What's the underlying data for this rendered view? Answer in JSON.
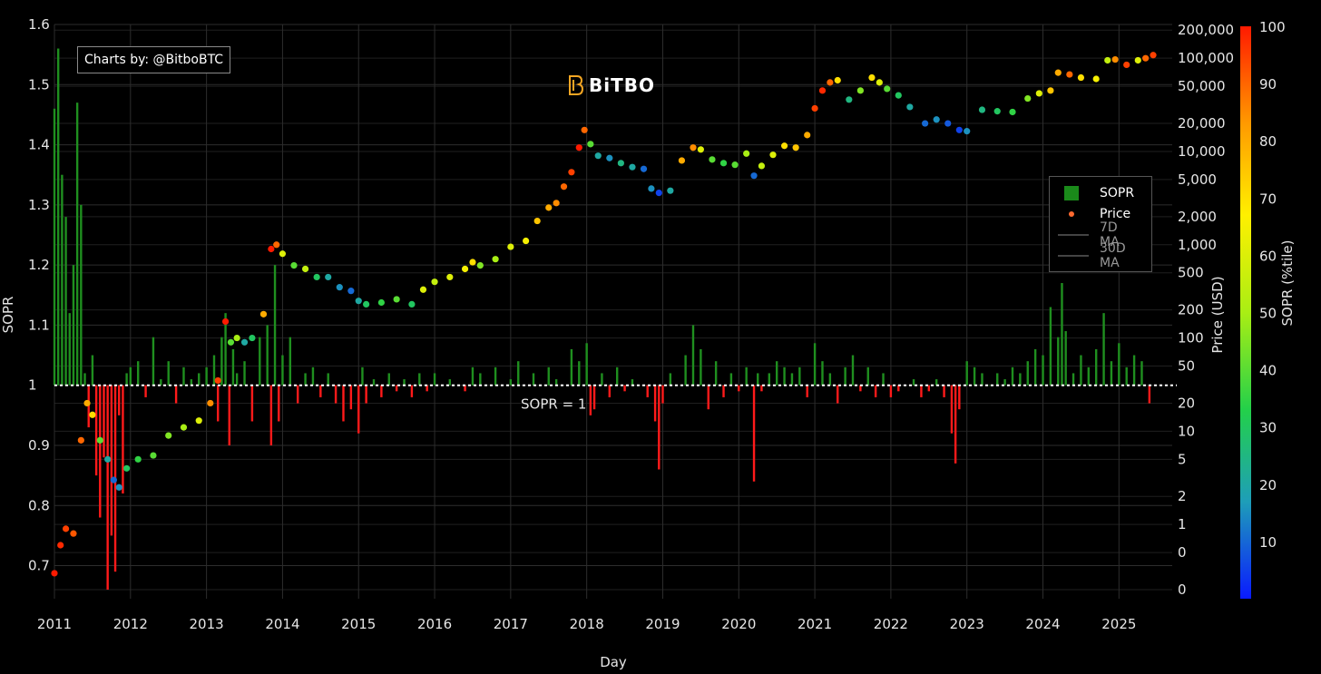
{
  "credit": "Charts by: @BitboBTC",
  "logo": "BiTBO",
  "legend": {
    "items": [
      {
        "label": "SOPR",
        "color": "#1a8a1a",
        "kind": "box"
      },
      {
        "label": "Price",
        "color": "#ff6a30",
        "kind": "dot"
      },
      {
        "label": "7D MA",
        "color": "#888888",
        "kind": "line"
      },
      {
        "label": "30D MA",
        "color": "#888888",
        "kind": "line"
      }
    ]
  },
  "colors": {
    "above": "#1f8f1f",
    "below": "#ff1a1a",
    "grid": "#2d2d2d",
    "colorbar": [
      "#0a1aff",
      "#1e9eb8",
      "#23d04a",
      "#a9ee14",
      "#fff000",
      "#ff9a00",
      "#ff1a00"
    ]
  },
  "chart_data": {
    "type": "bar",
    "xlabel": "Day",
    "ylabel": "SOPR",
    "y2label": "Price (USD)",
    "colorbar_label": "SOPR (%tile)",
    "reference_line": {
      "value": 1,
      "label": "SOPR = 1"
    },
    "x_ticks": [
      "2011",
      "2012",
      "2013",
      "2014",
      "2015",
      "2016",
      "2017",
      "2018",
      "2019",
      "2020",
      "2021",
      "2022",
      "2023",
      "2024",
      "2025"
    ],
    "x_range": [
      2011.0,
      2025.7
    ],
    "y_ticks": [
      0.7,
      0.8,
      0.9,
      1,
      1.1,
      1.2,
      1.3,
      1.4,
      1.5,
      1.6
    ],
    "y_tick_labels": [
      "0.7",
      "0.8",
      "0.9",
      "1",
      "1.1",
      "1.2",
      "1.3",
      "1.4",
      "1.5",
      "1.6"
    ],
    "ylim": [
      0.645,
      1.6
    ],
    "y2_ticks": [
      {
        "label": "200,000",
        "v": 200000
      },
      {
        "label": "100,000",
        "v": 100000
      },
      {
        "label": "50,000",
        "v": 50000
      },
      {
        "label": "20,000",
        "v": 20000
      },
      {
        "label": "10,000",
        "v": 10000
      },
      {
        "label": "5,000",
        "v": 5000
      },
      {
        "label": "2,000",
        "v": 2000
      },
      {
        "label": "1,000",
        "v": 1000
      },
      {
        "label": "500",
        "v": 500
      },
      {
        "label": "200",
        "v": 200
      },
      {
        "label": "100",
        "v": 100
      },
      {
        "label": "50",
        "v": 50
      },
      {
        "label": "20",
        "v": 20
      },
      {
        "label": "10",
        "v": 10
      },
      {
        "label": "5",
        "v": 5
      },
      {
        "label": "2",
        "v": 2
      },
      {
        "label": "1",
        "v": 1
      },
      {
        "label": "0",
        "v": 0.5
      },
      {
        "label": "0",
        "v": 0.2
      }
    ],
    "y2lim": [
      0.16,
      230000
    ],
    "colorbar_ticks": [
      10,
      20,
      30,
      40,
      50,
      60,
      70,
      80,
      90,
      100
    ],
    "colorbar_range": [
      0,
      100
    ],
    "series": [
      {
        "name": "SOPR",
        "x": [
          2011.0,
          2011.05,
          2011.1,
          2011.15,
          2011.2,
          2011.25,
          2011.3,
          2011.35,
          2011.4,
          2011.45,
          2011.5,
          2011.55,
          2011.6,
          2011.65,
          2011.7,
          2011.75,
          2011.8,
          2011.85,
          2011.9,
          2011.95,
          2012.0,
          2012.1,
          2012.2,
          2012.3,
          2012.4,
          2012.5,
          2012.6,
          2012.7,
          2012.8,
          2012.9,
          2013.0,
          2013.1,
          2013.15,
          2013.2,
          2013.25,
          2013.3,
          2013.35,
          2013.4,
          2013.5,
          2013.6,
          2013.7,
          2013.8,
          2013.85,
          2013.9,
          2013.95,
          2014.0,
          2014.1,
          2014.2,
          2014.3,
          2014.4,
          2014.5,
          2014.6,
          2014.7,
          2014.8,
          2014.9,
          2015.0,
          2015.05,
          2015.1,
          2015.2,
          2015.3,
          2015.4,
          2015.5,
          2015.6,
          2015.7,
          2015.8,
          2015.9,
          2016.0,
          2016.2,
          2016.4,
          2016.5,
          2016.6,
          2016.8,
          2017.0,
          2017.1,
          2017.3,
          2017.5,
          2017.6,
          2017.8,
          2017.9,
          2018.0,
          2018.05,
          2018.1,
          2018.2,
          2018.3,
          2018.4,
          2018.5,
          2018.6,
          2018.8,
          2018.9,
          2018.95,
          2019.0,
          2019.1,
          2019.3,
          2019.4,
          2019.5,
          2019.6,
          2019.7,
          2019.8,
          2019.9,
          2020.0,
          2020.1,
          2020.2,
          2020.25,
          2020.3,
          2020.4,
          2020.5,
          2020.6,
          2020.7,
          2020.8,
          2020.9,
          2021.0,
          2021.1,
          2021.2,
          2021.3,
          2021.4,
          2021.5,
          2021.6,
          2021.7,
          2021.8,
          2021.9,
          2022.0,
          2022.1,
          2022.3,
          2022.4,
          2022.5,
          2022.6,
          2022.7,
          2022.8,
          2022.85,
          2022.9,
          2023.0,
          2023.1,
          2023.2,
          2023.3,
          2023.4,
          2023.5,
          2023.6,
          2023.7,
          2023.8,
          2023.9,
          2024.0,
          2024.1,
          2024.2,
          2024.25,
          2024.3,
          2024.4,
          2024.5,
          2024.6,
          2024.7,
          2024.8,
          2024.9,
          2025.0,
          2025.1,
          2025.2,
          2025.3,
          2025.4
        ],
        "values": [
          1.46,
          1.56,
          1.35,
          1.28,
          1.12,
          1.2,
          1.47,
          1.3,
          1.02,
          0.93,
          1.05,
          0.85,
          0.78,
          0.88,
          0.66,
          0.75,
          0.69,
          0.95,
          0.82,
          1.02,
          1.03,
          1.04,
          0.98,
          1.08,
          1.01,
          1.04,
          0.97,
          1.03,
          1.01,
          1.02,
          1.03,
          1.05,
          0.94,
          1.08,
          1.12,
          0.9,
          1.06,
          1.02,
          1.04,
          0.94,
          1.08,
          1.1,
          0.9,
          1.2,
          0.94,
          1.05,
          1.08,
          0.97,
          1.02,
          1.03,
          0.98,
          1.02,
          0.97,
          0.94,
          0.96,
          0.92,
          1.03,
          0.97,
          1.01,
          0.98,
          1.02,
          0.99,
          1.01,
          0.98,
          1.02,
          0.99,
          1.02,
          1.01,
          0.99,
          1.03,
          1.02,
          1.03,
          1.01,
          1.04,
          1.02,
          1.03,
          1.01,
          1.06,
          1.04,
          1.07,
          0.95,
          0.96,
          1.02,
          0.98,
          1.03,
          0.99,
          1.01,
          0.98,
          0.94,
          0.86,
          0.97,
          1.02,
          1.05,
          1.1,
          1.06,
          0.96,
          1.04,
          0.98,
          1.02,
          0.99,
          1.03,
          0.84,
          1.02,
          0.99,
          1.02,
          1.04,
          1.03,
          1.02,
          1.03,
          0.98,
          1.07,
          1.04,
          1.02,
          0.97,
          1.03,
          1.05,
          0.99,
          1.03,
          0.98,
          1.02,
          0.98,
          0.99,
          1.01,
          0.98,
          0.99,
          1.01,
          0.98,
          0.92,
          0.87,
          0.96,
          1.04,
          1.03,
          1.02,
          1.0,
          1.02,
          1.01,
          1.03,
          1.02,
          1.04,
          1.06,
          1.05,
          1.13,
          1.08,
          1.17,
          1.09,
          1.02,
          1.05,
          1.03,
          1.06,
          1.12,
          1.04,
          1.07,
          1.03,
          1.05,
          1.04,
          0.97
        ]
      },
      {
        "name": "Price",
        "x": [
          2011.0,
          2011.08,
          2011.15,
          2011.25,
          2011.35,
          2011.43,
          2011.5,
          2011.6,
          2011.7,
          2011.78,
          2011.85,
          2011.95,
          2012.1,
          2012.3,
          2012.5,
          2012.7,
          2012.9,
          2013.05,
          2013.15,
          2013.25,
          2013.32,
          2013.4,
          2013.5,
          2013.6,
          2013.75,
          2013.85,
          2013.92,
          2014.0,
          2014.15,
          2014.3,
          2014.45,
          2014.6,
          2014.75,
          2014.9,
          2015.0,
          2015.1,
          2015.3,
          2015.5,
          2015.7,
          2015.85,
          2016.0,
          2016.2,
          2016.4,
          2016.5,
          2016.6,
          2016.8,
          2017.0,
          2017.2,
          2017.35,
          2017.5,
          2017.6,
          2017.7,
          2017.8,
          2017.9,
          2017.97,
          2018.05,
          2018.15,
          2018.3,
          2018.45,
          2018.6,
          2018.75,
          2018.85,
          2018.95,
          2019.1,
          2019.25,
          2019.4,
          2019.5,
          2019.65,
          2019.8,
          2019.95,
          2020.1,
          2020.2,
          2020.3,
          2020.45,
          2020.6,
          2020.75,
          2020.9,
          2021.0,
          2021.1,
          2021.2,
          2021.3,
          2021.45,
          2021.6,
          2021.75,
          2021.85,
          2021.95,
          2022.1,
          2022.25,
          2022.45,
          2022.6,
          2022.75,
          2022.9,
          2023.0,
          2023.2,
          2023.4,
          2023.6,
          2023.8,
          2023.95,
          2024.1,
          2024.2,
          2024.35,
          2024.5,
          2024.7,
          2024.85,
          2024.95,
          2025.1,
          2025.25,
          2025.35,
          2025.45
        ],
        "values": [
          0.3,
          0.6,
          0.9,
          0.8,
          8,
          20,
          15,
          8,
          5,
          3,
          2.5,
          4,
          5,
          5.5,
          9,
          11,
          13,
          20,
          35,
          150,
          90,
          100,
          90,
          100,
          180,
          900,
          1000,
          800,
          600,
          550,
          450,
          450,
          350,
          320,
          250,
          230,
          240,
          260,
          230,
          330,
          400,
          450,
          550,
          650,
          600,
          700,
          950,
          1100,
          1800,
          2500,
          2800,
          4200,
          6000,
          11000,
          17000,
          12000,
          9000,
          8500,
          7500,
          6800,
          6500,
          4000,
          3600,
          3800,
          8000,
          11000,
          10500,
          8200,
          7500,
          7200,
          9500,
          5500,
          7000,
          9200,
          11500,
          11000,
          15000,
          29000,
          45000,
          55000,
          58000,
          36000,
          45000,
          62000,
          55000,
          47000,
          40000,
          30000,
          20000,
          22000,
          20000,
          17000,
          16500,
          28000,
          27000,
          26500,
          37000,
          42000,
          45000,
          70000,
          67000,
          62000,
          60000,
          95000,
          97000,
          85000,
          95000,
          100000,
          108000
        ],
        "percentile": [
          100,
          98,
          95,
          92,
          90,
          80,
          70,
          40,
          20,
          10,
          15,
          30,
          35,
          40,
          45,
          50,
          60,
          85,
          95,
          100,
          40,
          50,
          20,
          30,
          80,
          100,
          90,
          60,
          40,
          55,
          30,
          20,
          15,
          10,
          20,
          30,
          35,
          40,
          30,
          60,
          55,
          60,
          65,
          70,
          45,
          50,
          60,
          65,
          75,
          80,
          85,
          90,
          95,
          100,
          90,
          40,
          20,
          15,
          25,
          20,
          10,
          15,
          5,
          20,
          80,
          85,
          60,
          40,
          35,
          40,
          50,
          10,
          55,
          60,
          70,
          75,
          80,
          95,
          98,
          90,
          70,
          25,
          45,
          70,
          60,
          40,
          30,
          20,
          10,
          15,
          8,
          5,
          15,
          25,
          30,
          35,
          45,
          60,
          75,
          80,
          90,
          70,
          65,
          55,
          85,
          95,
          60,
          90,
          95
        ]
      }
    ]
  }
}
